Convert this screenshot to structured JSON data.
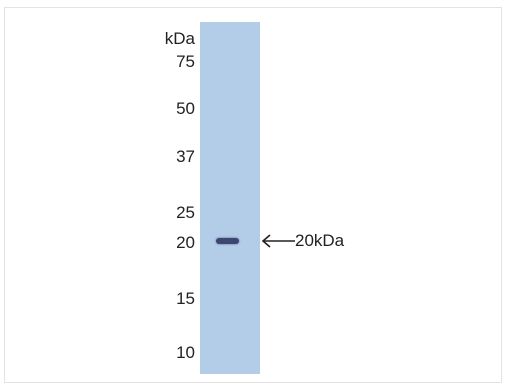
{
  "blot": {
    "unit_label": "kDa",
    "markers": [
      "75",
      "50",
      "37",
      "25",
      "20",
      "15",
      "10"
    ],
    "band_label": "20kDa",
    "lane_color": "#b3cde9",
    "band_color": "#3c4670"
  }
}
